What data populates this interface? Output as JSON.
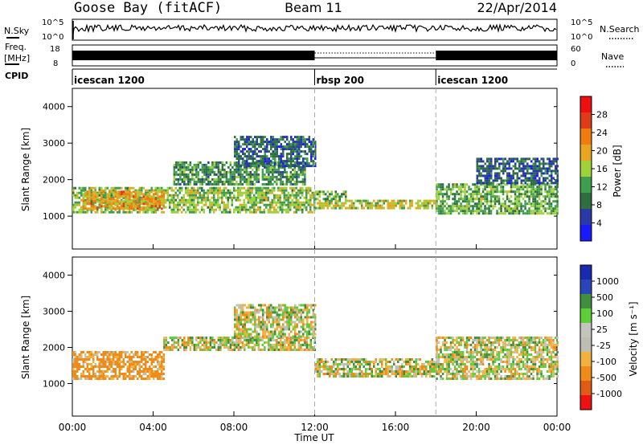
{
  "header": {
    "station": "Goose Bay (fitACF)",
    "beam": "Beam 11",
    "date": "22/Apr/2014"
  },
  "summary": {
    "nsky_label": "N.Sky",
    "nsearch_label": "N.Search",
    "freq_label_line1": "Freq.",
    "freq_label_line2": "[MHz]",
    "nave_label": "Nave",
    "cpid_label": "CPID",
    "left_ticks_top": [
      "10^5",
      "10^0"
    ],
    "right_ticks_top": [
      "10^5",
      "10^0"
    ],
    "left_ticks_freq": [
      "18",
      "8"
    ],
    "right_ticks_nave": [
      "60",
      "0"
    ],
    "cpid_segments": [
      {
        "label": "icescan 1200",
        "start": 0,
        "end": 12
      },
      {
        "label": "rbsp 200",
        "start": 12,
        "end": 18
      },
      {
        "label": "icescan 1200",
        "start": 18,
        "end": 24
      }
    ]
  },
  "colors": {
    "power_scale": [
      "#1a1aff",
      "#2a3aa8",
      "#2f6f3f",
      "#3e9e4e",
      "#9ed13a",
      "#e8a520",
      "#f07c10",
      "#e03b18",
      "#ee1010"
    ],
    "velocity_scale": [
      "#ee1111",
      "#e05a18",
      "#f08a18",
      "#f3b240",
      "#bdbdb3",
      "#c4c4bc",
      "#5fcc3a",
      "#3f8f3f",
      "#2a45b8",
      "#1a2ab0"
    ]
  },
  "chart_data": [
    {
      "type": "heatmap",
      "panel": "power",
      "ylabel": "Slant Range [km]",
      "xlim": [
        0,
        24
      ],
      "ylim": [
        100,
        4500
      ],
      "yticks": [
        1000,
        2000,
        3000,
        4000
      ],
      "colorbar": {
        "label": "Power [dB]",
        "ticks": [
          "4",
          "8",
          "12",
          "16",
          "20",
          "24",
          "28"
        ],
        "range": [
          0,
          30
        ]
      },
      "bands": [
        {
          "t_start": 0.0,
          "t_end": 12.0,
          "r_min": 1100,
          "r_max": 1800,
          "value": 14
        },
        {
          "t_start": 0.5,
          "t_end": 4.5,
          "r_min": 1200,
          "r_max": 1700,
          "value": 20
        },
        {
          "t_start": 5.0,
          "t_end": 11.5,
          "r_min": 1900,
          "r_max": 2500,
          "value": 10
        },
        {
          "t_start": 8.0,
          "t_end": 12.0,
          "r_min": 2400,
          "r_max": 3200,
          "value": 6
        },
        {
          "t_start": 12.0,
          "t_end": 18.0,
          "r_min": 1200,
          "r_max": 1450,
          "value": 16
        },
        {
          "t_start": 12.0,
          "t_end": 13.5,
          "r_min": 1450,
          "r_max": 1700,
          "value": 12
        },
        {
          "t_start": 18.0,
          "t_end": 24.0,
          "r_min": 1100,
          "r_max": 1900,
          "value": 12
        },
        {
          "t_start": 20.0,
          "t_end": 24.0,
          "r_min": 1900,
          "r_max": 2600,
          "value": 6
        }
      ]
    },
    {
      "type": "heatmap",
      "panel": "velocity",
      "xlabel": "Time UT",
      "ylabel": "Slant Range [km]",
      "xlim": [
        0,
        24
      ],
      "ylim": [
        100,
        4500
      ],
      "yticks": [
        1000,
        2000,
        3000,
        4000
      ],
      "xticks": [
        "00:00",
        "04:00",
        "08:00",
        "12:00",
        "16:00",
        "20:00",
        "00:00"
      ],
      "colorbar": {
        "label": "Velocity [m s⁻¹]",
        "ticks": [
          "1000",
          "500",
          "100",
          "25",
          "-25",
          "-100",
          "-500",
          "-1000"
        ]
      },
      "bands": [
        {
          "t_start": 0.0,
          "t_end": 4.5,
          "r_min": 1100,
          "r_max": 1900,
          "value": -150
        },
        {
          "t_start": 4.5,
          "t_end": 12.0,
          "r_min": 1900,
          "r_max": 2300,
          "value": 0
        },
        {
          "t_start": 8.0,
          "t_end": 12.0,
          "r_min": 2300,
          "r_max": 3200,
          "value": 0
        },
        {
          "t_start": 12.0,
          "t_end": 18.0,
          "r_min": 1200,
          "r_max": 1700,
          "value": 0
        },
        {
          "t_start": 18.0,
          "t_end": 24.0,
          "r_min": 1100,
          "r_max": 2300,
          "value": 0
        }
      ]
    }
  ]
}
